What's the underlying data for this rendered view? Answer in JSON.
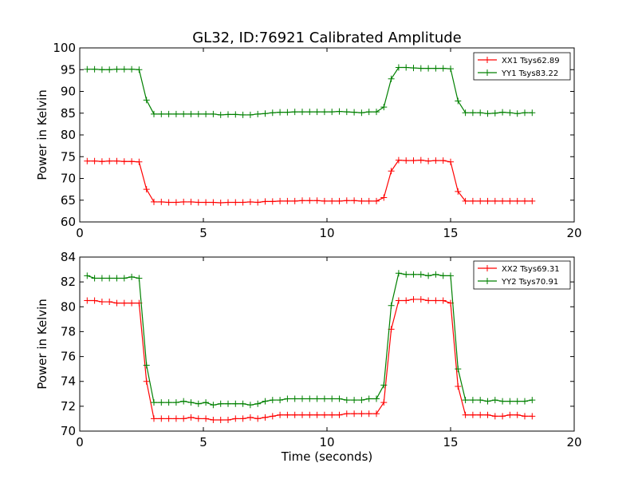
{
  "chart_data": [
    {
      "type": "line",
      "title": "GL32, ID:76921 Calibrated Amplitude",
      "xlabel": "",
      "ylabel": "Power in Kelvin",
      "xlim": [
        0,
        20
      ],
      "ylim": [
        60,
        100
      ],
      "xticks": [
        0,
        5,
        10,
        15,
        20
      ],
      "yticks": [
        60,
        65,
        70,
        75,
        80,
        85,
        90,
        95,
        100
      ],
      "grid": false,
      "legend": "top-right",
      "x": [
        0.3,
        0.6,
        0.9,
        1.2,
        1.5,
        1.8,
        2.1,
        2.4,
        2.7,
        3.0,
        3.3,
        3.6,
        3.9,
        4.2,
        4.5,
        4.8,
        5.1,
        5.4,
        5.7,
        6.0,
        6.3,
        6.6,
        6.9,
        7.2,
        7.5,
        7.8,
        8.1,
        8.4,
        8.7,
        9.0,
        9.3,
        9.6,
        9.9,
        10.2,
        10.5,
        10.8,
        11.1,
        11.4,
        11.7,
        12.0,
        12.3,
        12.6,
        12.9,
        13.2,
        13.5,
        13.8,
        14.1,
        14.4,
        14.7,
        15.0,
        15.3,
        15.6,
        15.9,
        16.2,
        16.5,
        16.8,
        17.1,
        17.4,
        17.7,
        18.0,
        18.3
      ],
      "series": [
        {
          "name": "XX1 Tsys62.89",
          "color": "#ff0000",
          "values": [
            74.0,
            74.0,
            73.9,
            74.0,
            74.0,
            73.9,
            73.9,
            73.8,
            67.5,
            64.6,
            64.6,
            64.5,
            64.5,
            64.6,
            64.6,
            64.5,
            64.5,
            64.5,
            64.4,
            64.5,
            64.5,
            64.5,
            64.6,
            64.5,
            64.7,
            64.7,
            64.8,
            64.8,
            64.8,
            64.9,
            64.9,
            64.9,
            64.8,
            64.8,
            64.8,
            64.9,
            64.9,
            64.8,
            64.8,
            64.8,
            65.6,
            71.7,
            74.2,
            74.1,
            74.1,
            74.2,
            74.0,
            74.1,
            74.1,
            73.8,
            67.0,
            64.8,
            64.8,
            64.8,
            64.8,
            64.8,
            64.8,
            64.8,
            64.8,
            64.8,
            64.8
          ]
        },
        {
          "name": "YY1 Tsys83.22",
          "color": "#008000",
          "values": [
            95.1,
            95.1,
            95.0,
            95.0,
            95.1,
            95.1,
            95.1,
            95.0,
            88.0,
            84.8,
            84.8,
            84.8,
            84.8,
            84.8,
            84.8,
            84.8,
            84.8,
            84.8,
            84.6,
            84.7,
            84.7,
            84.6,
            84.6,
            84.8,
            84.9,
            85.1,
            85.2,
            85.2,
            85.3,
            85.3,
            85.3,
            85.3,
            85.3,
            85.3,
            85.4,
            85.3,
            85.2,
            85.1,
            85.3,
            85.3,
            86.4,
            92.9,
            95.5,
            95.5,
            95.4,
            95.3,
            95.3,
            95.3,
            95.3,
            95.2,
            87.8,
            85.1,
            85.1,
            85.1,
            84.9,
            85.0,
            85.2,
            85.1,
            84.9,
            85.1,
            85.1
          ]
        }
      ]
    },
    {
      "type": "line",
      "title": "",
      "xlabel": "Time (seconds)",
      "ylabel": "Power in Kelvin",
      "xlim": [
        0,
        20
      ],
      "ylim": [
        70,
        84
      ],
      "xticks": [
        0,
        5,
        10,
        15,
        20
      ],
      "yticks": [
        70,
        72,
        74,
        76,
        78,
        80,
        82,
        84
      ],
      "grid": false,
      "legend": "top-right",
      "x": [
        0.3,
        0.6,
        0.9,
        1.2,
        1.5,
        1.8,
        2.1,
        2.4,
        2.7,
        3.0,
        3.3,
        3.6,
        3.9,
        4.2,
        4.5,
        4.8,
        5.1,
        5.4,
        5.7,
        6.0,
        6.3,
        6.6,
        6.9,
        7.2,
        7.5,
        7.8,
        8.1,
        8.4,
        8.7,
        9.0,
        9.3,
        9.6,
        9.9,
        10.2,
        10.5,
        10.8,
        11.1,
        11.4,
        11.7,
        12.0,
        12.3,
        12.6,
        12.9,
        13.2,
        13.5,
        13.8,
        14.1,
        14.4,
        14.7,
        15.0,
        15.3,
        15.6,
        15.9,
        16.2,
        16.5,
        16.8,
        17.1,
        17.4,
        17.7,
        18.0,
        18.3
      ],
      "series": [
        {
          "name": "XX2 Tsys69.31",
          "color": "#ff0000",
          "values": [
            80.5,
            80.5,
            80.4,
            80.4,
            80.3,
            80.3,
            80.3,
            80.3,
            74.0,
            71.0,
            71.0,
            71.0,
            71.0,
            71.0,
            71.1,
            71.0,
            71.0,
            70.9,
            70.9,
            70.9,
            71.0,
            71.0,
            71.1,
            71.0,
            71.1,
            71.2,
            71.3,
            71.3,
            71.3,
            71.3,
            71.3,
            71.3,
            71.3,
            71.3,
            71.3,
            71.4,
            71.4,
            71.4,
            71.4,
            71.4,
            72.3,
            78.2,
            80.5,
            80.5,
            80.6,
            80.6,
            80.5,
            80.5,
            80.5,
            80.3,
            73.6,
            71.3,
            71.3,
            71.3,
            71.3,
            71.2,
            71.2,
            71.3,
            71.3,
            71.2,
            71.2
          ]
        },
        {
          "name": "YY2 Tsys70.91",
          "color": "#008000",
          "values": [
            82.5,
            82.3,
            82.3,
            82.3,
            82.3,
            82.3,
            82.4,
            82.3,
            75.3,
            72.3,
            72.3,
            72.3,
            72.3,
            72.4,
            72.3,
            72.2,
            72.3,
            72.1,
            72.2,
            72.2,
            72.2,
            72.2,
            72.1,
            72.2,
            72.4,
            72.5,
            72.5,
            72.6,
            72.6,
            72.6,
            72.6,
            72.6,
            72.6,
            72.6,
            72.6,
            72.5,
            72.5,
            72.5,
            72.6,
            72.6,
            73.7,
            80.1,
            82.7,
            82.6,
            82.6,
            82.6,
            82.5,
            82.6,
            82.5,
            82.5,
            75.0,
            72.5,
            72.5,
            72.5,
            72.4,
            72.5,
            72.4,
            72.4,
            72.4,
            72.4,
            72.5
          ]
        }
      ]
    }
  ]
}
